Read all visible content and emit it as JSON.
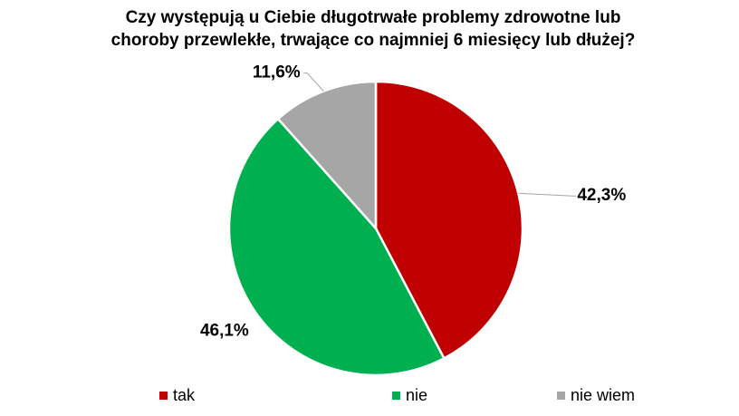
{
  "chart_data": {
    "type": "pie",
    "title": [
      "Czy występują u Ciebie długotrwałe problemy zdrowotne lub",
      "choroby przewlekłe, trwające co najmniej 6 miesięcy lub dłużej?"
    ],
    "categories": [
      "tak",
      "nie",
      "nie wiem"
    ],
    "values": [
      42.3,
      46.1,
      11.6
    ],
    "value_labels": [
      "42,3%",
      "46,1%",
      "11,6%"
    ],
    "colors": [
      "#c00000",
      "#00b050",
      "#a6a6a6"
    ],
    "legend": "bottom"
  }
}
